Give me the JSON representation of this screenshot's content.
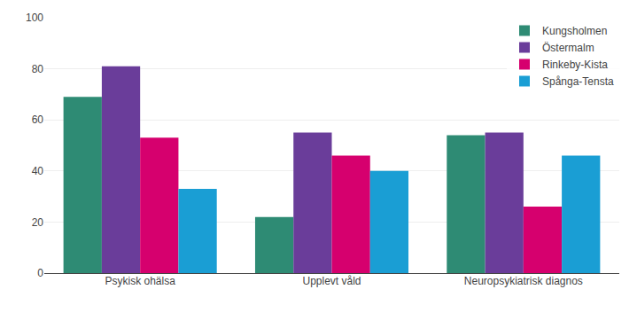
{
  "chart_data": {
    "type": "bar",
    "categories": [
      "Psykisk ohälsa",
      "Upplevt våld",
      "Neuropsykiatrisk diagnos"
    ],
    "series": [
      {
        "name": "Kungsholmen",
        "color": "#2e8b74",
        "values": [
          69,
          22,
          54
        ]
      },
      {
        "name": "Östermalm",
        "color": "#6a3d9a",
        "values": [
          81,
          55,
          55
        ]
      },
      {
        "name": "Rinkeby-Kista",
        "color": "#d6006e",
        "values": [
          53,
          46,
          26
        ]
      },
      {
        "name": "Spånga-Tensta",
        "color": "#1a9ed4",
        "values": [
          33,
          40,
          46
        ]
      }
    ],
    "ylim": [
      0,
      100
    ],
    "yticks": [
      0,
      20,
      40,
      60,
      80,
      100
    ],
    "grid": true,
    "legend": "upper right"
  }
}
